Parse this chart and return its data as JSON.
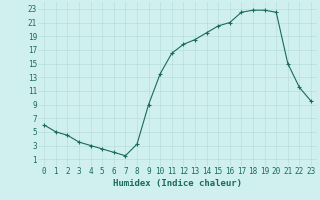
{
  "x": [
    0,
    1,
    2,
    3,
    4,
    5,
    6,
    7,
    8,
    9,
    10,
    11,
    12,
    13,
    14,
    15,
    16,
    17,
    18,
    19,
    20,
    21,
    22,
    23
  ],
  "y": [
    6,
    5,
    4.5,
    3.5,
    3,
    2.5,
    2,
    1.5,
    3.2,
    9,
    13.5,
    16.5,
    17.8,
    18.5,
    19.5,
    20.5,
    21,
    22.5,
    22.8,
    22.8,
    22.5,
    15,
    11.5,
    9.5
  ],
  "line_color": "#1a6b5a",
  "marker": "+",
  "marker_size": 3,
  "bg_color": "#cff0ee",
  "grid_color": "#b8dedd",
  "xlabel": "Humidex (Indice chaleur)",
  "xlim": [
    -0.5,
    23.5
  ],
  "ylim": [
    0,
    24
  ],
  "yticks": [
    1,
    3,
    5,
    7,
    9,
    11,
    13,
    15,
    17,
    19,
    21,
    23
  ],
  "xticks": [
    0,
    1,
    2,
    3,
    4,
    5,
    6,
    7,
    8,
    9,
    10,
    11,
    12,
    13,
    14,
    15,
    16,
    17,
    18,
    19,
    20,
    21,
    22,
    23
  ],
  "tick_color": "#1a6b5a",
  "label_color": "#1a6b5a",
  "xlabel_fontsize": 6.5,
  "tick_fontsize": 5.5,
  "linewidth": 0.8,
  "markeredgewidth": 0.8
}
